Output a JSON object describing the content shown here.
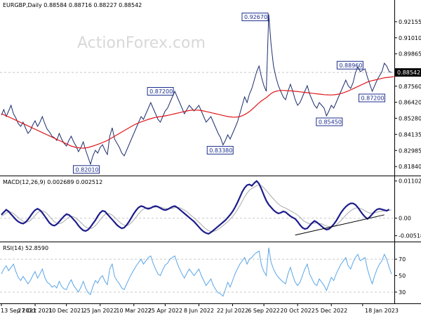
{
  "chart_data": [
    {
      "type": "line",
      "panel": "price",
      "title": "EURGBP,Daily  0.88584 0.88716 0.88227 0.88542",
      "symbol": "EURGBP",
      "timeframe": "Daily",
      "ohlc": {
        "open": 0.88584,
        "high": 0.88716,
        "low": 0.88227,
        "close": 0.88542
      },
      "watermark": "ActionForex.com",
      "ylim": [
        0.813,
        0.935
      ],
      "y_ticks": [
        "0.92155",
        "0.91010",
        "0.89865",
        "0.87560",
        "0.86420",
        "0.85280",
        "0.84135",
        "0.82985",
        "0.81840"
      ],
      "last_value": "0.88542",
      "x_ticks": [
        "13 Sep 2021",
        "27 Oct 2021",
        "10 Dec 2021",
        "25 Jan 2022",
        "10 Mar 2022",
        "25 Apr 2022",
        "8 Jun 2022",
        "22 Jul 2022",
        "6 Sep 2022",
        "20 Oct 2022",
        "5 Dec 2022",
        "18 Jan 2023"
      ],
      "series": [
        {
          "name": "",
          "color": "#1c2e6e",
          "values": [
            0.855,
            0.859,
            0.854,
            0.858,
            0.862,
            0.856,
            0.853,
            0.849,
            0.847,
            0.85,
            0.846,
            0.842,
            0.844,
            0.848,
            0.851,
            0.847,
            0.85,
            0.854,
            0.849,
            0.845,
            0.843,
            0.84,
            0.839,
            0.837,
            0.842,
            0.838,
            0.835,
            0.833,
            0.837,
            0.84,
            0.836,
            0.833,
            0.829,
            0.832,
            0.836,
            0.83,
            0.825,
            0.8201,
            0.826,
            0.83,
            0.828,
            0.832,
            0.834,
            0.83,
            0.827,
            0.84,
            0.846,
            0.838,
            0.835,
            0.832,
            0.828,
            0.826,
            0.83,
            0.834,
            0.838,
            0.842,
            0.846,
            0.85,
            0.854,
            0.852,
            0.856,
            0.86,
            0.864,
            0.86,
            0.856,
            0.852,
            0.85,
            0.854,
            0.858,
            0.86,
            0.864,
            0.868,
            0.872,
            0.868,
            0.864,
            0.86,
            0.856,
            0.859,
            0.862,
            0.86,
            0.858,
            0.86,
            0.862,
            0.858,
            0.854,
            0.85,
            0.852,
            0.854,
            0.85,
            0.846,
            0.842,
            0.839,
            0.8338,
            0.837,
            0.841,
            0.838,
            0.842,
            0.846,
            0.85,
            0.856,
            0.862,
            0.868,
            0.864,
            0.87,
            0.874,
            0.88,
            0.886,
            0.89,
            0.882,
            0.876,
            0.872,
            0.9267,
            0.905,
            0.89,
            0.882,
            0.876,
            0.872,
            0.868,
            0.866,
            0.872,
            0.877,
            0.872,
            0.866,
            0.862,
            0.864,
            0.868,
            0.872,
            0.876,
            0.87,
            0.866,
            0.862,
            0.86,
            0.864,
            0.862,
            0.86,
            0.8545,
            0.858,
            0.862,
            0.86,
            0.864,
            0.868,
            0.872,
            0.876,
            0.88,
            0.876,
            0.874,
            0.878,
            0.885,
            0.8896,
            0.886,
            0.887,
            0.888,
            0.882,
            0.877,
            0.872,
            0.876,
            0.88,
            0.883,
            0.886,
            0.892,
            0.89,
            0.886,
            0.8854
          ]
        },
        {
          "name": "",
          "color": "#e0161a",
          "values": [
            0.856,
            0.8553,
            0.8545,
            0.8538,
            0.853,
            0.8522,
            0.8514,
            0.8506,
            0.8498,
            0.849,
            0.8482,
            0.8474,
            0.8466,
            0.8458,
            0.845,
            0.8442,
            0.8434,
            0.8426,
            0.8418,
            0.841,
            0.8402,
            0.8394,
            0.8386,
            0.8378,
            0.837,
            0.8362,
            0.8354,
            0.8346,
            0.8338,
            0.833,
            0.8325,
            0.832,
            0.8318,
            0.8316,
            0.8315,
            0.8317,
            0.832,
            0.8325,
            0.833,
            0.8336,
            0.8342,
            0.8348,
            0.8355,
            0.8362,
            0.837,
            0.838,
            0.839,
            0.84,
            0.841,
            0.842,
            0.843,
            0.844,
            0.845,
            0.846,
            0.847,
            0.848,
            0.8488,
            0.8495,
            0.8502,
            0.8508,
            0.8514,
            0.852,
            0.8525,
            0.853,
            0.8534,
            0.8537,
            0.854,
            0.8542,
            0.8545,
            0.8548,
            0.8552,
            0.8556,
            0.856,
            0.8564,
            0.8568,
            0.8572,
            0.8576,
            0.858,
            0.8583,
            0.8585,
            0.8586,
            0.8586,
            0.8585,
            0.8583,
            0.858,
            0.8576,
            0.8572,
            0.8568,
            0.8564,
            0.856,
            0.8556,
            0.8552,
            0.8548,
            0.8544,
            0.854,
            0.8538,
            0.8536,
            0.8536,
            0.8537,
            0.854,
            0.8546,
            0.8554,
            0.8564,
            0.8576,
            0.859,
            0.8606,
            0.8622,
            0.8638,
            0.8652,
            0.8664,
            0.8674,
            0.869,
            0.8704,
            0.8714,
            0.872,
            0.8724,
            0.8726,
            0.8726,
            0.8725,
            0.8724,
            0.8723,
            0.8722,
            0.872,
            0.8718,
            0.8716,
            0.8714,
            0.8712,
            0.871,
            0.8708,
            0.8706,
            0.8704,
            0.8702,
            0.87,
            0.8698,
            0.8696,
            0.8695,
            0.8694,
            0.8694,
            0.8695,
            0.8697,
            0.87,
            0.8704,
            0.8709,
            0.8715,
            0.8722,
            0.873,
            0.8738,
            0.8746,
            0.8754,
            0.8762,
            0.877,
            0.8778,
            0.8786,
            0.8792,
            0.8796,
            0.88,
            0.8804,
            0.8808,
            0.8812,
            0.8816,
            0.8818,
            0.882,
            0.8822,
            0.8825
          ]
        }
      ],
      "annotations": [
        {
          "label": "0.92670",
          "i": 111,
          "v": 0.9267
        },
        {
          "label": "0.87200",
          "i": 72,
          "v": 0.872
        },
        {
          "label": "0.82010",
          "i": 37,
          "v": 0.8201
        },
        {
          "label": "0.83380",
          "i": 92,
          "v": 0.8338
        },
        {
          "label": "0.85450",
          "i": 135,
          "v": 0.8545
        },
        {
          "label": "0.88960",
          "i": 149,
          "v": 0.8896
        },
        {
          "label": "0.87200",
          "i": 155,
          "v": 0.872
        }
      ],
      "grid": false
    },
    {
      "type": "line",
      "panel": "macd",
      "title": "MACD(12,26,9) 0.002689 0.002512",
      "ylim": [
        -0.0065,
        0.0118
      ],
      "y_ticks": [
        "0.011023",
        "0.00",
        "-0.005182"
      ],
      "series": [
        {
          "name": "",
          "color": "#1c1c8c",
          "values": [
            0.001,
            0.0018,
            0.0025,
            0.002,
            0.0012,
            0.0004,
            -0.0004,
            -0.001,
            -0.0014,
            -0.0016,
            -0.0012,
            -0.0004,
            0.0006,
            0.0016,
            0.0024,
            0.0028,
            0.0024,
            0.0016,
            0.0006,
            -0.0004,
            -0.0014,
            -0.002,
            -0.0022,
            -0.0018,
            -0.001,
            -0.0002,
            0.0006,
            0.0012,
            0.001,
            0.0004,
            -0.0004,
            -0.0012,
            -0.0022,
            -0.003,
            -0.0036,
            -0.0038,
            -0.0034,
            -0.0026,
            -0.0016,
            -0.0006,
            0.0006,
            0.0016,
            0.0022,
            0.002,
            0.0012,
            0.0004,
            -0.0004,
            -0.0012,
            -0.002,
            -0.0026,
            -0.003,
            -0.0028,
            -0.002,
            -0.001,
            0.0002,
            0.0014,
            0.0024,
            0.0032,
            0.0036,
            0.0034,
            0.003,
            0.0028,
            0.003,
            0.0034,
            0.0036,
            0.0034,
            0.003,
            0.0026,
            0.0024,
            0.0026,
            0.003,
            0.0034,
            0.0036,
            0.0032,
            0.0026,
            0.002,
            0.0014,
            0.0008,
            0.0002,
            -0.0004,
            -0.001,
            -0.0018,
            -0.0026,
            -0.0034,
            -0.004,
            -0.0044,
            -0.0046,
            -0.0042,
            -0.0036,
            -0.003,
            -0.0024,
            -0.0018,
            -0.0012,
            -0.0006,
            0.0002,
            0.001,
            0.002,
            0.0032,
            0.0046,
            0.0062,
            0.0078,
            0.009,
            0.0098,
            0.01,
            0.0096,
            0.0104,
            0.011,
            0.0102,
            0.0086,
            0.0068,
            0.0052,
            0.004,
            0.0032,
            0.0024,
            0.0018,
            0.0014,
            0.0016,
            0.002,
            0.0018,
            0.0012,
            0.0006,
            0.0002,
            -0.0002,
            -0.001,
            -0.002,
            -0.0028,
            -0.0032,
            -0.003,
            -0.0022,
            -0.0014,
            -0.0008,
            -0.0012,
            -0.0018,
            -0.0024,
            -0.003,
            -0.0034,
            -0.0032,
            -0.0026,
            -0.0018,
            -0.0008,
            0.0004,
            0.0016,
            0.0026,
            0.0034,
            0.004,
            0.0044,
            0.0044,
            0.004,
            0.0032,
            0.0022,
            0.0012,
            0.0004,
            -0.0002,
            0.0004,
            0.0012,
            0.002,
            0.0026,
            0.0028,
            0.0026,
            0.0024,
            0.0022,
            0.0026
          ]
        },
        {
          "name": "",
          "color": "#a9a9a9",
          "values": [
            0.0006,
            0.001,
            0.0016,
            0.0019,
            0.0018,
            0.0014,
            0.0008,
            0.0002,
            -0.0004,
            -0.0009,
            -0.0012,
            -0.0011,
            -0.0007,
            0.0,
            0.0008,
            0.0016,
            0.0021,
            0.0022,
            0.0019,
            0.0013,
            0.0005,
            -0.0003,
            -0.001,
            -0.0015,
            -0.0016,
            -0.0014,
            -0.0009,
            -0.0003,
            0.0003,
            0.0006,
            0.0004,
            0.0,
            -0.0006,
            -0.0013,
            -0.002,
            -0.0026,
            -0.003,
            -0.0031,
            -0.0028,
            -0.0022,
            -0.0014,
            -0.0005,
            0.0004,
            0.0011,
            0.0014,
            0.0013,
            0.0009,
            0.0003,
            -0.0004,
            -0.0011,
            -0.0017,
            -0.0021,
            -0.0022,
            -0.0019,
            -0.0013,
            -0.0005,
            0.0004,
            0.0013,
            0.0021,
            0.0027,
            0.003,
            0.0031,
            0.0031,
            0.0032,
            0.0033,
            0.0034,
            0.0033,
            0.0031,
            0.0029,
            0.0028,
            0.0028,
            0.0029,
            0.0031,
            0.0032,
            0.0031,
            0.0028,
            0.0024,
            0.0019,
            0.0013,
            0.0007,
            0.0001,
            -0.0005,
            -0.0012,
            -0.0019,
            -0.0026,
            -0.0032,
            -0.0037,
            -0.0039,
            -0.0039,
            -0.0037,
            -0.0033,
            -0.0028,
            -0.0022,
            -0.0016,
            -0.001,
            -0.0003,
            0.0005,
            0.0014,
            0.0025,
            0.0037,
            0.005,
            0.0063,
            0.0074,
            0.0083,
            0.0088,
            0.0092,
            0.0097,
            0.0099,
            0.0096,
            0.009,
            0.0082,
            0.0073,
            0.0065,
            0.0057,
            0.0049,
            0.0042,
            0.0037,
            0.0033,
            0.003,
            0.0026,
            0.0022,
            0.0018,
            0.0014,
            0.0009,
            0.0003,
            -0.0004,
            -0.001,
            -0.0014,
            -0.0016,
            -0.0016,
            -0.0014,
            -0.0014,
            -0.0015,
            -0.0017,
            -0.002,
            -0.0023,
            -0.0025,
            -0.0025,
            -0.0024,
            -0.002,
            -0.0014,
            -0.0007,
            0.0001,
            0.0009,
            0.0016,
            0.0022,
            0.0027,
            0.003,
            0.0031,
            0.0029,
            0.0026,
            0.0022,
            0.0018,
            0.0015,
            0.0015,
            0.0016,
            0.0018,
            0.002,
            0.0021,
            0.0022,
            0.0022,
            0.0023,
            0.0025
          ]
        }
      ],
      "trendline": {
        "from": {
          "i": 122,
          "v": -0.005
        },
        "to": {
          "i": 159,
          "v": 0.001
        }
      },
      "zero_line": true
    },
    {
      "type": "line",
      "panel": "rsi",
      "title": "RSI(14) 52.8590",
      "ylim": [
        18,
        88
      ],
      "y_ticks": [
        "70",
        "50",
        "30"
      ],
      "levels": [
        70,
        30
      ],
      "series": [
        {
          "name": "",
          "color": "#5aa6e8",
          "values": [
            52,
            58,
            62,
            56,
            60,
            64,
            55,
            48,
            44,
            49,
            45,
            40,
            44,
            50,
            55,
            47,
            52,
            58,
            48,
            42,
            40,
            36,
            38,
            35,
            43,
            37,
            34,
            33,
            40,
            45,
            38,
            34,
            30,
            36,
            43,
            35,
            29,
            27,
            37,
            44,
            41,
            47,
            50,
            43,
            39,
            58,
            64,
            49,
            44,
            40,
            35,
            33,
            40,
            46,
            52,
            57,
            62,
            66,
            70,
            64,
            68,
            72,
            74,
            65,
            58,
            52,
            50,
            57,
            63,
            65,
            70,
            72,
            74,
            65,
            58,
            52,
            47,
            53,
            58,
            54,
            50,
            54,
            58,
            50,
            44,
            38,
            42,
            46,
            38,
            33,
            29,
            28,
            25,
            33,
            42,
            36,
            44,
            52,
            58,
            64,
            68,
            72,
            64,
            70,
            72,
            76,
            78,
            80,
            62,
            55,
            50,
            84,
            66,
            58,
            52,
            48,
            45,
            42,
            40,
            52,
            60,
            50,
            42,
            38,
            42,
            50,
            58,
            64,
            52,
            46,
            40,
            38,
            46,
            42,
            38,
            32,
            40,
            48,
            44,
            52,
            58,
            64,
            68,
            72,
            62,
            58,
            66,
            72,
            76,
            68,
            70,
            72,
            58,
            48,
            40,
            50,
            58,
            64,
            68,
            76,
            70,
            60,
            52
          ]
        }
      ]
    }
  ]
}
